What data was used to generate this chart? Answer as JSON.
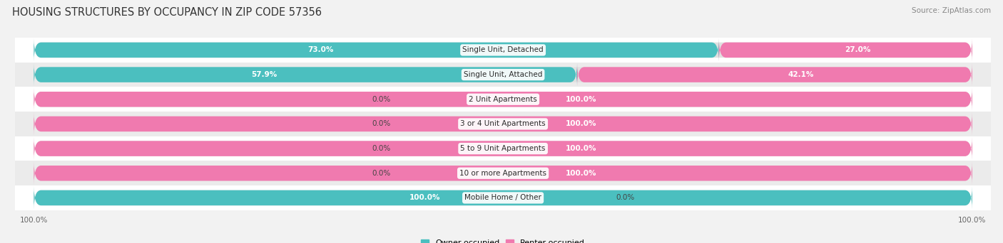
{
  "title": "HOUSING STRUCTURES BY OCCUPANCY IN ZIP CODE 57356",
  "source": "Source: ZipAtlas.com",
  "categories": [
    "Single Unit, Detached",
    "Single Unit, Attached",
    "2 Unit Apartments",
    "3 or 4 Unit Apartments",
    "5 to 9 Unit Apartments",
    "10 or more Apartments",
    "Mobile Home / Other"
  ],
  "owner_pct": [
    73.0,
    57.9,
    0.0,
    0.0,
    0.0,
    0.0,
    100.0
  ],
  "renter_pct": [
    27.0,
    42.1,
    100.0,
    100.0,
    100.0,
    100.0,
    0.0
  ],
  "owner_color": "#4BBFBF",
  "renter_color": "#F07AAF",
  "renter_color_light": "#F5AACB",
  "owner_label": "Owner-occupied",
  "renter_label": "Renter-occupied",
  "bg_color": "#f2f2f2",
  "row_odd_color": "#ffffff",
  "row_even_color": "#ebebeb",
  "pill_bg_color": "#e0e0e0",
  "title_fontsize": 10.5,
  "source_fontsize": 7.5,
  "cat_label_fontsize": 7.5,
  "pct_label_fontsize": 7.5,
  "bar_height": 0.62,
  "xlim": 100,
  "legend_fontsize": 8
}
